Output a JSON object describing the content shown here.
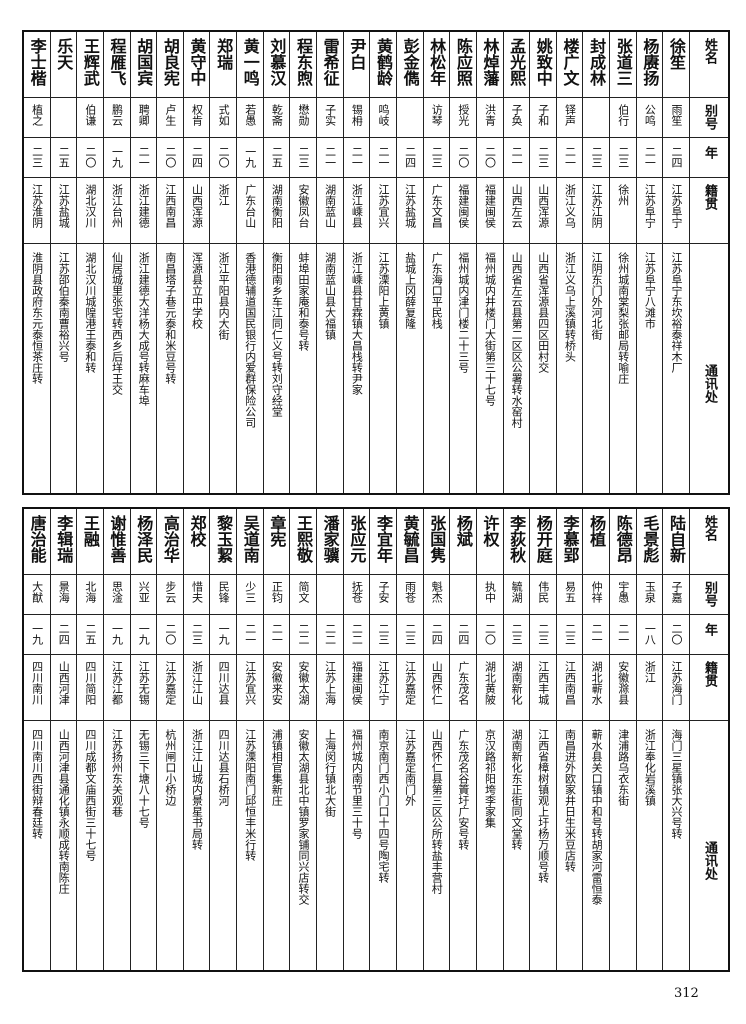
{
  "headers": {
    "name": "姓名",
    "alias": "别号",
    "age": "年龄",
    "origin": "籍贯",
    "address": "通讯处"
  },
  "tables": [
    {
      "rows": [
        {
          "name": "徐笙",
          "alias": "雨笙",
          "age": "二四",
          "origin": "江苏阜宁",
          "address": "江苏阜宁东坎裕泰祥木厂"
        },
        {
          "name": "杨赓扬",
          "alias": "公鸣",
          "age": "二一",
          "origin": "江苏阜宁",
          "address": "江苏阜宁八滩市"
        },
        {
          "name": "张道三",
          "alias": "伯行",
          "age": "二三",
          "origin": "徐州",
          "address": "徐州城南棠梨张邮局转喻庄"
        },
        {
          "name": "封成林",
          "alias": "",
          "age": "二三",
          "origin": "江苏江阴",
          "address": "江阴东门外河北街"
        },
        {
          "name": "楼广文",
          "alias": "铎声",
          "age": "二一",
          "origin": "浙江义乌",
          "address": "浙江义乌上溪镇转桥头"
        },
        {
          "name": "姚致中",
          "alias": "子和",
          "age": "二三",
          "origin": "山西浑源",
          "address": "山西省浑源县四区田村交"
        },
        {
          "name": "孟光熙",
          "alias": "子奂",
          "age": "二一",
          "origin": "山西左云",
          "address": "山西省左云县第二区区公署转水窑村"
        },
        {
          "name": "林焯藩",
          "alias": "洪青",
          "age": "二〇",
          "origin": "福建闽侯",
          "address": "福州城内井楼门大街第三十七号"
        },
        {
          "name": "陈应照",
          "alias": "授光",
          "age": "二〇",
          "origin": "福建闽侯",
          "address": "福州城内津门楼二十三号"
        },
        {
          "name": "林松年",
          "alias": "访琴",
          "age": "二三",
          "origin": "广东文昌",
          "address": "广东海口平民栈"
        },
        {
          "name": "彭金儁",
          "alias": "",
          "age": "二四",
          "origin": "江苏盐城",
          "address": "盐城上冈薛复隆"
        },
        {
          "name": "黄鹤龄",
          "alias": "鸣岐",
          "age": "二一",
          "origin": "江苏宜兴",
          "address": "江苏溧阳上黄镇"
        },
        {
          "name": "尹白",
          "alias": "锡枏",
          "age": "二一",
          "origin": "浙江嵊县",
          "address": "浙江嵊县甘霖镇大昌栈转尹家"
        },
        {
          "name": "雷希征",
          "alias": "子实",
          "age": "二一",
          "origin": "湖南蓝山",
          "address": "湖南蓝山县大福镇"
        },
        {
          "name": "程东煦",
          "alias": "懋勋",
          "age": "二三",
          "origin": "安徽凤台",
          "address": "蚌埠田家庵和泰号转"
        },
        {
          "name": "刘慕汉",
          "alias": "乾斋",
          "age": "二五",
          "origin": "湖南衡阳",
          "address": "衡阳南乡车江同仁义号转刘守经堂"
        },
        {
          "name": "黄一鸣",
          "alias": "若愚",
          "age": "一九",
          "origin": "广东台山",
          "address": "香港德辅道国民银行内爱群保险公司"
        },
        {
          "name": "郑瑞",
          "alias": "式如",
          "age": "二〇",
          "origin": "浙江",
          "address": "浙江平阳县内大街"
        },
        {
          "name": "黄守中",
          "alias": "权肯",
          "age": "二四",
          "origin": "山西浑源",
          "address": "浑源县立中学校"
        },
        {
          "name": "胡良宪",
          "alias": "卢生",
          "age": "二〇",
          "origin": "江西南昌",
          "address": "南昌塔子巷元泰和米豆号转"
        },
        {
          "name": "胡国宾",
          "alias": "聘卿",
          "age": "二一",
          "origin": "浙江建德",
          "address": "浙江建德大洋杨大成号转麻车埠"
        },
        {
          "name": "程雁飞",
          "alias": "鹏云",
          "age": "一九",
          "origin": "浙江台州",
          "address": "仙居城里张宅转西乡后垟王交"
        },
        {
          "name": "王辉武",
          "alias": "伯谦",
          "age": "二〇",
          "origin": "湖北汉川",
          "address": "湖北汉川城隍港王泰和转"
        },
        {
          "name": "乐天",
          "alias": "",
          "age": "二五",
          "origin": "江苏盐城",
          "address": "江苏邵伯秦南曹裕兴号"
        },
        {
          "name": "李士楷",
          "alias": "植之",
          "age": "二三",
          "origin": "江苏淮阴",
          "address": "淮阴县政府东元泰恒茶庄转"
        }
      ]
    },
    {
      "rows": [
        {
          "name": "陆自新",
          "alias": "子嘉",
          "age": "二〇",
          "origin": "江苏海门",
          "address": "海门三星镇张大兴号转"
        },
        {
          "name": "毛景彪",
          "alias": "玉泉",
          "age": "一八",
          "origin": "浙江",
          "address": "浙江奉化岩溪镇"
        },
        {
          "name": "陈德昂",
          "alias": "宇愚",
          "age": "二一",
          "origin": "安徽滁县",
          "address": "津浦路乌衣东街"
        },
        {
          "name": "杨植",
          "alias": "仲祥",
          "age": "二一",
          "origin": "湖北蕲水",
          "address": "蕲水县关口镇中和号转胡家河雷恒泰"
        },
        {
          "name": "李慕郢",
          "alias": "易五",
          "age": "二三",
          "origin": "江西南昌",
          "address": "南昌进外欧家井日生米豆店转"
        },
        {
          "name": "杨开庭",
          "alias": "伟民",
          "age": "二三",
          "origin": "江西丰城",
          "address": "江西省樟树镇观上圩杨万顺号转"
        },
        {
          "name": "李荻秋",
          "alias": "毓湖",
          "age": "二三",
          "origin": "湖南新化",
          "address": "湖南新化东正街同文堂转"
        },
        {
          "name": "许权",
          "alias": "执中",
          "age": "二〇",
          "origin": "湖北黄陂",
          "address": "京汉路祁阳垮李家集"
        },
        {
          "name": "杨斌",
          "alias": "",
          "age": "二四",
          "origin": "广东茂名",
          "address": "广东茂名谷篢圩广安号转"
        },
        {
          "name": "张国隽",
          "alias": "魁杰",
          "age": "二四",
          "origin": "山西怀仁",
          "address": "山西怀仁县第三区公所转盐丰营村"
        },
        {
          "name": "黄毓昌",
          "alias": "雨苍",
          "age": "二三",
          "origin": "江苏嘉定",
          "address": "江苏嘉定南门外"
        },
        {
          "name": "李宜年",
          "alias": "子安",
          "age": "二三",
          "origin": "江苏江宁",
          "address": "南京南门西小门口十四号陶宅转"
        },
        {
          "name": "张应元",
          "alias": "抚苍",
          "age": "二二",
          "origin": "福建闽侯",
          "address": "福州城内南节里三十号"
        },
        {
          "name": "潘家骥",
          "alias": "",
          "age": "二二",
          "origin": "江苏上海",
          "address": "上海闵行镇北大街"
        },
        {
          "name": "王熙敬",
          "alias": "简文",
          "age": "二二",
          "origin": "安徽太湖",
          "address": "安徽太湖县北中镇罗家铺同兴店转交"
        },
        {
          "name": "章宪",
          "alias": "正钧",
          "age": "二一",
          "origin": "安徽来安",
          "address": "浦镇相官集新庄"
        },
        {
          "name": "吴道南",
          "alias": "少三",
          "age": "二一",
          "origin": "江苏宜兴",
          "address": "江苏溧阳南门邱恒丰米行转"
        },
        {
          "name": "黎玉絜",
          "alias": "民锋",
          "age": "一九",
          "origin": "四川达县",
          "address": "四川达县石桥河"
        },
        {
          "name": "郑校",
          "alias": "惜夫",
          "age": "二三",
          "origin": "浙江江山",
          "address": "浙江江山城内景星书局转"
        },
        {
          "name": "高治华",
          "alias": "步云",
          "age": "二〇",
          "origin": "江苏嘉定",
          "address": "杭州闸口小桥边"
        },
        {
          "name": "杨泽民",
          "alias": "兴亚",
          "age": "一九",
          "origin": "江苏无锡",
          "address": "无锡三下塘八十七号"
        },
        {
          "name": "谢惟善",
          "alias": "思淦",
          "age": "一九",
          "origin": "江苏江都",
          "address": "江苏扬州东关观巷"
        },
        {
          "name": "王融",
          "alias": "北海",
          "age": "二五",
          "origin": "四川简阳",
          "address": "四川成都文庙西街三十七号"
        },
        {
          "name": "李辑瑞",
          "alias": "景海",
          "age": "二四",
          "origin": "山西河津",
          "address": "山西河津县通化镇永顺成转南陈庄"
        },
        {
          "name": "唐治能",
          "alias": "大猷",
          "age": "一九",
          "origin": "四川南川",
          "address": "四川南川西街辩春廷转"
        }
      ]
    }
  ],
  "page_number": "312"
}
